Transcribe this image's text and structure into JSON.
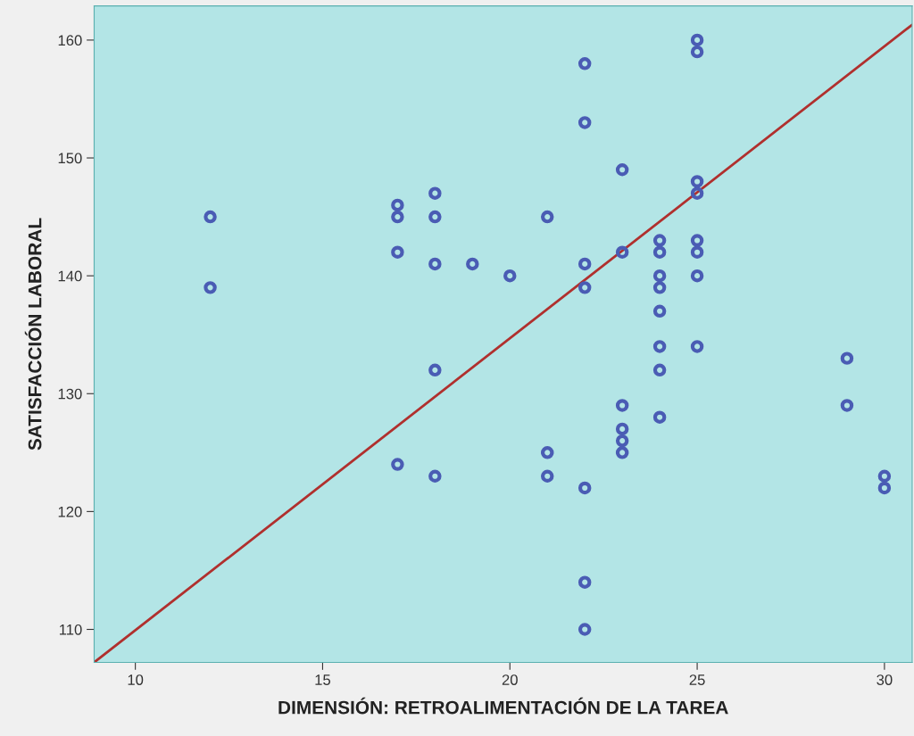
{
  "chart_data": {
    "type": "scatter",
    "xlabel": "DIMENSIÓN: RETROALIMENTACIÓN DE LA TAREA",
    "ylabel": "SATISFACCIÓN LABORAL",
    "xlim": [
      8.9,
      30.74
    ],
    "ylim": [
      107.2,
      162.9
    ],
    "xticks": [
      10,
      15,
      20,
      25,
      30
    ],
    "yticks": [
      110,
      120,
      130,
      140,
      150,
      160
    ],
    "grid": false,
    "legend": false,
    "marker": "circle",
    "series": [
      {
        "color": "#4a5cb4",
        "x": [
          12,
          12,
          17,
          17,
          17,
          17,
          18,
          18,
          18,
          18,
          18,
          19,
          20,
          21,
          21,
          21,
          22,
          22,
          22,
          22,
          22,
          22,
          22,
          23,
          23,
          23,
          23,
          23,
          23,
          24,
          24,
          24,
          24,
          24,
          24,
          24,
          24,
          25,
          25,
          25,
          25,
          25,
          25,
          25,
          25,
          29,
          29,
          30,
          30
        ],
        "values": [
          145,
          139,
          146,
          145,
          142,
          124,
          147,
          145,
          141,
          132,
          123,
          141,
          140,
          145,
          125,
          123,
          158,
          153,
          141,
          139,
          122,
          114,
          110,
          149,
          142,
          129,
          127,
          126,
          125,
          143,
          142,
          140,
          139,
          137,
          134,
          132,
          128,
          160,
          159,
          148,
          147,
          143,
          142,
          140,
          134,
          133,
          129,
          123,
          122
        ]
      },
      {
        "type": "line",
        "color": "#b0302e",
        "marker": "none",
        "line_style": "solid",
        "x": [
          8.9,
          30.74
        ],
        "values": [
          107.2,
          161.3
        ]
      }
    ]
  }
}
